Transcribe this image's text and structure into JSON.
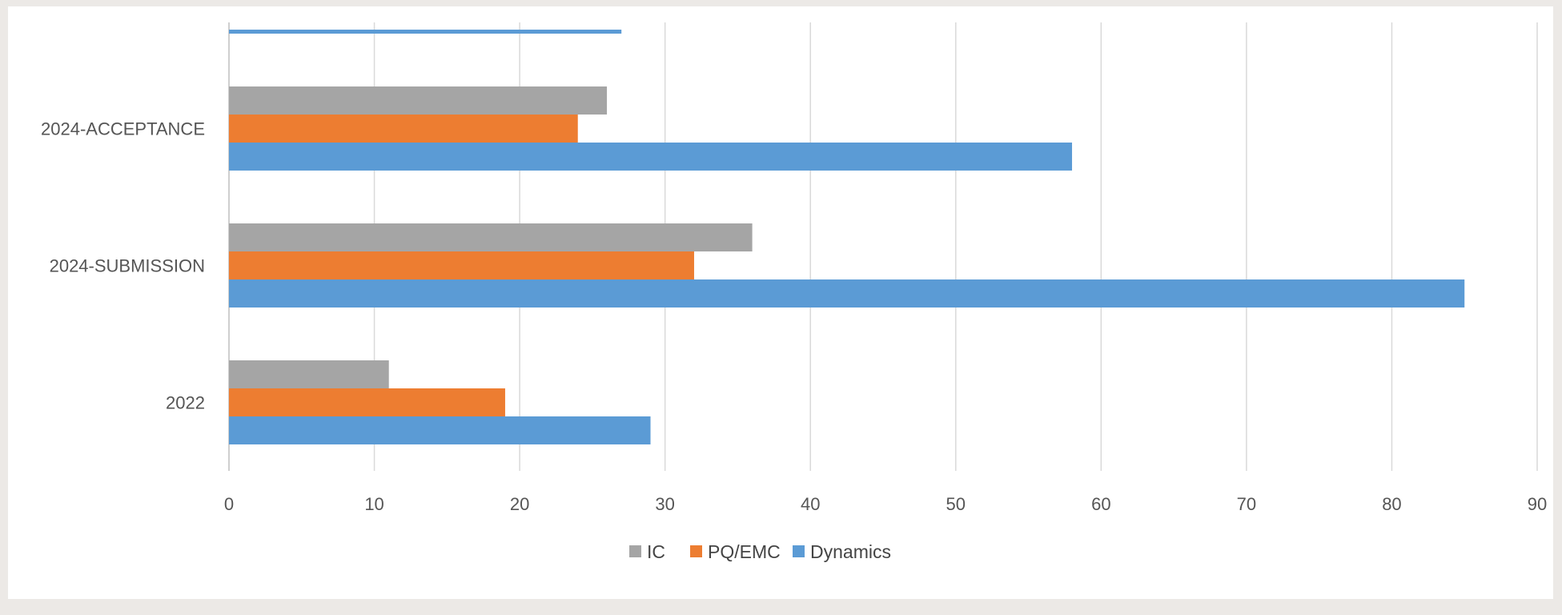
{
  "chart_data": {
    "type": "bar",
    "orientation": "horizontal",
    "categories": [
      "2022",
      "2024-SUBMISSION",
      "2024-ACCEPTANCE"
    ],
    "series": [
      {
        "name": "IC",
        "color": "#a5a5a5",
        "values": [
          11,
          36,
          26
        ]
      },
      {
        "name": "PQ/EMC",
        "color": "#ed7d31",
        "values": [
          19,
          32,
          24
        ]
      },
      {
        "name": "Dynamics",
        "color": "#5b9bd5",
        "values": [
          29,
          85,
          58
        ]
      }
    ],
    "partial_bar": {
      "series": "Dynamics",
      "value": 27
    },
    "x_ticks": [
      "0",
      "10",
      "20",
      "30",
      "40",
      "50",
      "60",
      "70",
      "80",
      "90"
    ],
    "xlim": [
      0,
      90
    ],
    "grid": "vertical",
    "legend": "bottom-center"
  }
}
